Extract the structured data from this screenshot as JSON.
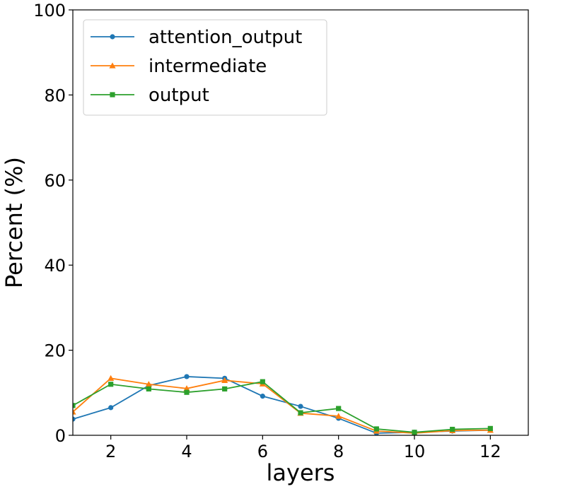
{
  "chart_data": {
    "type": "line",
    "xlabel": "layers",
    "ylabel": "Percent (%)",
    "xlim": [
      1,
      13
    ],
    "ylim": [
      0,
      100
    ],
    "x_ticks": [
      2,
      4,
      6,
      8,
      10,
      12
    ],
    "y_ticks": [
      0,
      20,
      40,
      60,
      80,
      100
    ],
    "grid": false,
    "legend_position": "upper-left",
    "x": [
      1,
      2,
      3,
      4,
      5,
      6,
      7,
      8,
      9,
      10,
      11,
      12
    ],
    "series": [
      {
        "name": "attention_output",
        "color": "#1f77b4",
        "marker": "circle",
        "values": [
          3.8,
          6.5,
          11.7,
          13.8,
          13.4,
          9.2,
          6.8,
          4.0,
          0.5,
          0.7,
          1.0,
          1.2
        ]
      },
      {
        "name": "intermediate",
        "color": "#ff7f0e",
        "marker": "triangle",
        "values": [
          5.5,
          13.4,
          12.0,
          11.0,
          12.9,
          12.1,
          5.2,
          4.5,
          1.0,
          0.5,
          1.1,
          1.2
        ]
      },
      {
        "name": "output",
        "color": "#2ca02c",
        "marker": "square",
        "values": [
          7.0,
          12.0,
          10.9,
          10.1,
          10.9,
          12.6,
          5.3,
          6.3,
          1.5,
          0.7,
          1.4,
          1.6
        ]
      }
    ]
  }
}
